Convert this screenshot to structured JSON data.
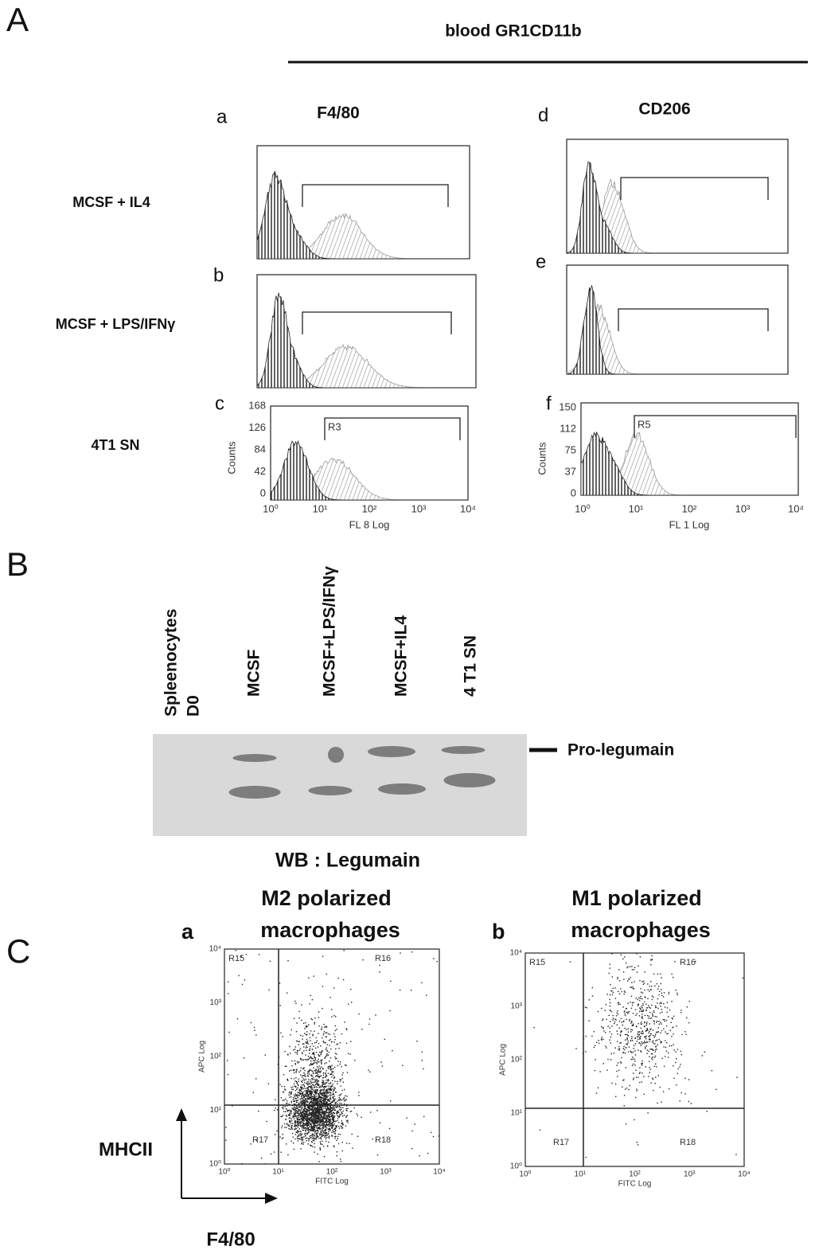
{
  "panel_a": {
    "label": "A",
    "header": "blood GR1CD11b",
    "columns": [
      "F4/80",
      "CD206"
    ],
    "rows": [
      "MCSF + IL4",
      "MCSF + LPS/IFNγ",
      "4T1 SN"
    ],
    "letters": [
      "a",
      "b",
      "c",
      "d",
      "e",
      "f"
    ],
    "plot_c": {
      "ylabel": "Counts",
      "yticks": [
        "168",
        "126",
        "84",
        "42",
        "0"
      ],
      "xticks": [
        "10⁰",
        "10¹",
        "10²",
        "10³",
        "10⁴"
      ],
      "xlabel": "FL 8 Log",
      "gate": "R3"
    },
    "plot_f": {
      "ylabel": "Counts",
      "yticks": [
        "150",
        "112",
        "75",
        "37",
        "0"
      ],
      "xticks": [
        "10⁰",
        "10¹",
        "10²",
        "10³",
        "10⁴"
      ],
      "xlabel": "FL 1 Log",
      "gate": "R5"
    }
  },
  "panel_b": {
    "label": "B",
    "lanes": [
      {
        "lines": [
          "Spleenocytes",
          "D0"
        ]
      },
      {
        "lines": [
          "MCSF"
        ]
      },
      {
        "lines": [
          "MCSF+LPS/IFNγ"
        ]
      },
      {
        "lines": [
          "MCSF+IL4"
        ]
      },
      {
        "lines": [
          "4 T1 SN"
        ]
      }
    ],
    "band_label": "Pro-legumain",
    "caption": "WB : Legumain"
  },
  "panel_c": {
    "label": "C",
    "plots": [
      {
        "letter": "a",
        "title": [
          "M2 polarized",
          "macrophages"
        ],
        "regions": [
          "R15",
          "R16",
          "R17",
          "R18"
        ],
        "xlabel": "FITC Log",
        "ylabel": "APC Log",
        "xticks": [
          "10⁰",
          "10¹",
          "10²",
          "10³",
          "10⁴"
        ],
        "yticks": [
          "10⁴",
          "10³",
          "10²",
          "10¹",
          "10⁰"
        ]
      },
      {
        "letter": "b",
        "title": [
          "M1 polarized",
          "macrophages"
        ],
        "regions": [
          "R15",
          "R16",
          "R17",
          "R18"
        ],
        "xlabel": "FITC Log",
        "ylabel": "APC Log",
        "xticks": [
          "10⁰",
          "10¹",
          "10²",
          "10³",
          "10⁴"
        ],
        "yticks": [
          "10⁴",
          "10³",
          "10²",
          "10¹",
          "10⁰"
        ]
      }
    ],
    "y_axis_label": "MHCII",
    "x_axis_label": "F4/80"
  }
}
